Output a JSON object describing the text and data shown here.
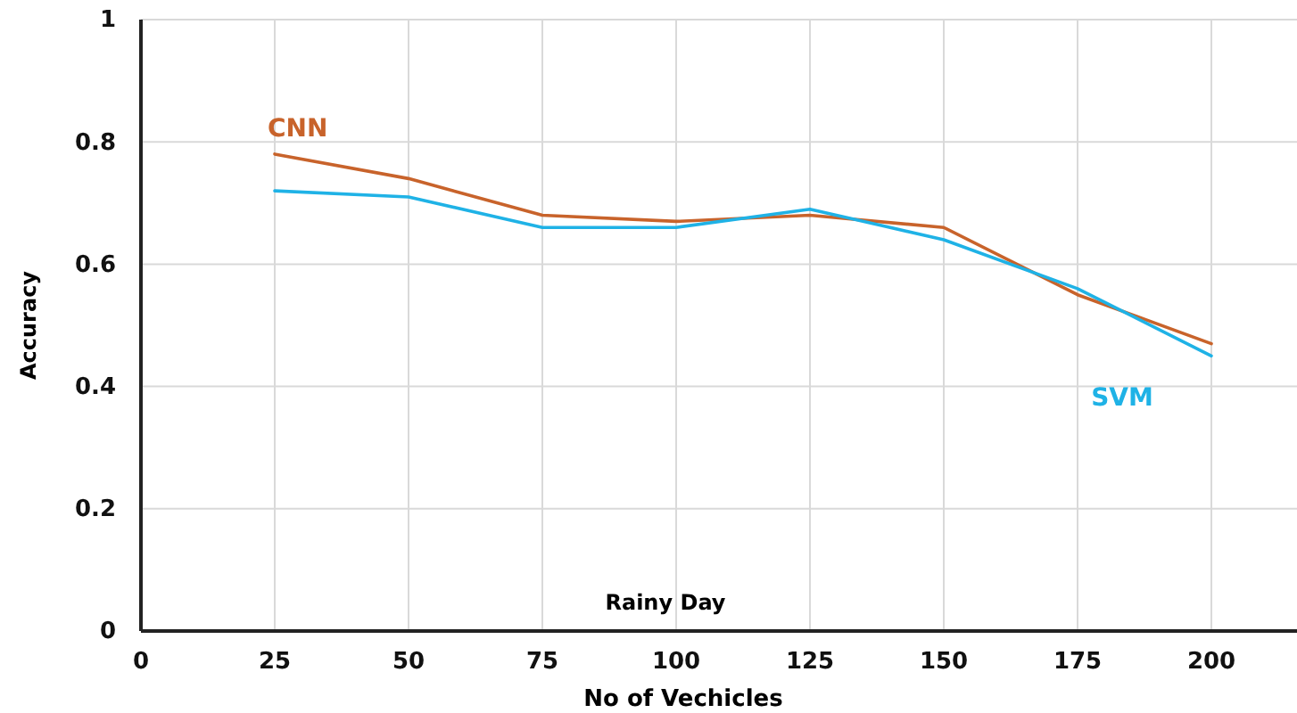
{
  "chart_data": {
    "type": "line",
    "xlabel": "No of Vechicles",
    "ylabel": "Accuracy",
    "annotations": [
      "Rainy Day"
    ],
    "x": [
      25,
      50,
      75,
      100,
      125,
      150,
      175,
      200
    ],
    "series": [
      {
        "name": "CNN",
        "color": "#c8632b",
        "values": [
          0.78,
          0.74,
          0.68,
          0.67,
          0.68,
          0.66,
          0.55,
          0.47
        ]
      },
      {
        "name": "SVM",
        "color": "#1fb2e6",
        "values": [
          0.72,
          0.71,
          0.66,
          0.66,
          0.69,
          0.64,
          0.56,
          0.45
        ]
      }
    ],
    "xlim": [
      0,
      216
    ],
    "xticks": [
      0,
      25,
      50,
      75,
      100,
      125,
      150,
      175,
      200
    ],
    "ylim": [
      0,
      1
    ],
    "yticks": [
      0,
      0.2,
      0.4,
      0.6,
      0.8,
      1
    ],
    "grid": true,
    "marker": "none",
    "line_style": "solid"
  }
}
